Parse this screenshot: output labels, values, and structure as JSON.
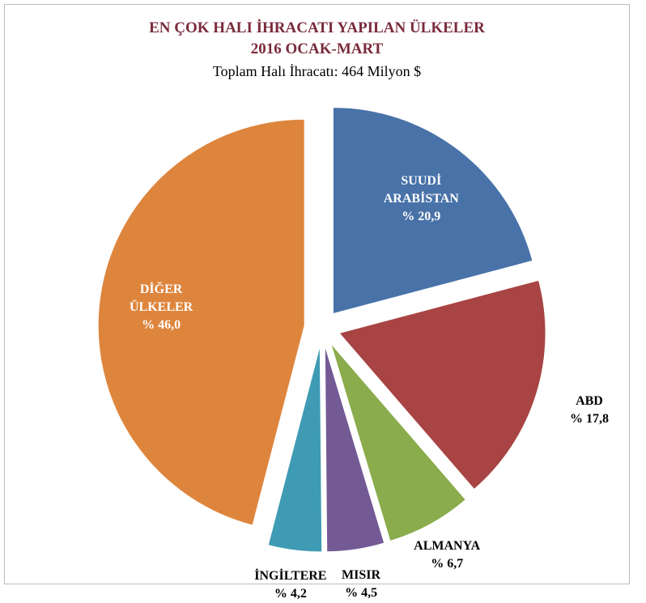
{
  "chart_data": {
    "type": "pie",
    "title": "EN ÇOK HALI İHRACATI YAPILAN ÜLKELER",
    "subtitle": "2016 OCAK-MART",
    "annotation": "Toplam Halı İhracatı: 464 Milyon $",
    "categories": [
      "SUUDİ ARABİSTAN",
      "ABD",
      "ALMANYA",
      "MISIR",
      "İNGİLTERE",
      "DİĞER ÜLKELER"
    ],
    "values": [
      20.9,
      17.8,
      6.7,
      4.5,
      4.2,
      46.0
    ],
    "value_labels": [
      "% 20,9",
      "% 17,8",
      "% 6,7",
      "% 4,5",
      "% 4,2",
      "% 46,0"
    ],
    "colors": [
      "#4872a8",
      "#a84443",
      "#8aac4c",
      "#735a95",
      "#3f9bb3",
      "#de853d"
    ]
  }
}
